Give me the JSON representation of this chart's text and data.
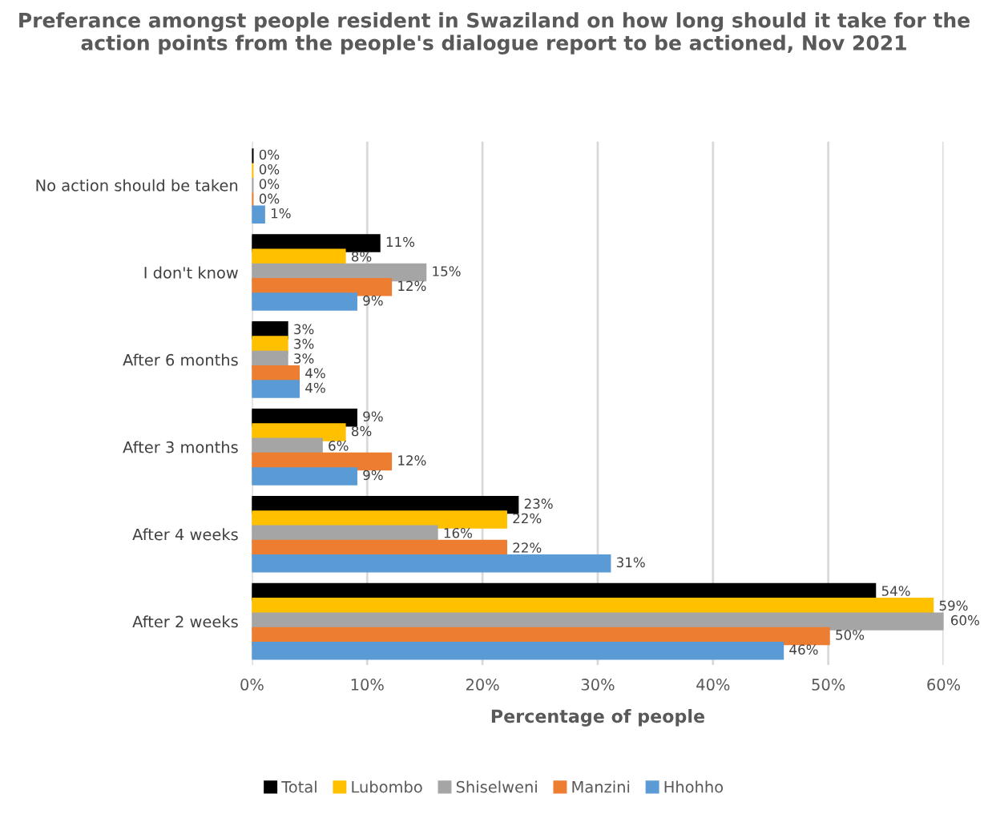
{
  "chart_data": {
    "type": "bar",
    "orientation": "horizontal",
    "title": "Preferance amongst people resident in Swaziland on how long should it take for the action points from the people's dialogue report to be actioned, Nov 2021",
    "xlabel": "Percentage of people",
    "categories": [
      "No action should be taken",
      "I don't know",
      "After 6 months",
      "After 3 months",
      "After 4 weeks",
      "After 2 weeks"
    ],
    "series": [
      {
        "name": "Total",
        "color": "#000000",
        "values": [
          0,
          11,
          3,
          9,
          23,
          54
        ],
        "value_labels": [
          "0%",
          "11%",
          "3%",
          "9%",
          "23%",
          "54%"
        ]
      },
      {
        "name": "Lubombo",
        "color": "#ffc000",
        "values": [
          0,
          8,
          3,
          8,
          22,
          59
        ],
        "value_labels": [
          "0%",
          "8%",
          "3%",
          "8%",
          "22%",
          "59%"
        ]
      },
      {
        "name": "Shiselweni",
        "color": "#a5a5a5",
        "values": [
          0,
          15,
          3,
          6,
          16,
          60
        ],
        "value_labels": [
          "0%",
          "15%",
          "3%",
          "6%",
          "16%",
          "60%"
        ]
      },
      {
        "name": "Manzini",
        "color": "#ed7d31",
        "values": [
          0,
          12,
          4,
          12,
          22,
          50
        ],
        "value_labels": [
          "0%",
          "12%",
          "4%",
          "12%",
          "22%",
          "50%"
        ]
      },
      {
        "name": "Hhohho",
        "color": "#5b9bd5",
        "values": [
          1,
          9,
          4,
          9,
          31,
          46
        ],
        "value_labels": [
          "1%",
          "9%",
          "4%",
          "9%",
          "31%",
          "46%"
        ]
      }
    ],
    "xlim": [
      0,
      60
    ],
    "xticks": [
      {
        "value": 0,
        "label": "0%"
      },
      {
        "value": 10,
        "label": "10%"
      },
      {
        "value": 20,
        "label": "20%"
      },
      {
        "value": 30,
        "label": "30%"
      },
      {
        "value": 40,
        "label": "40%"
      },
      {
        "value": 50,
        "label": "50%"
      },
      {
        "value": 60,
        "label": "60%"
      }
    ],
    "grid": "x",
    "legend": "bottom"
  }
}
